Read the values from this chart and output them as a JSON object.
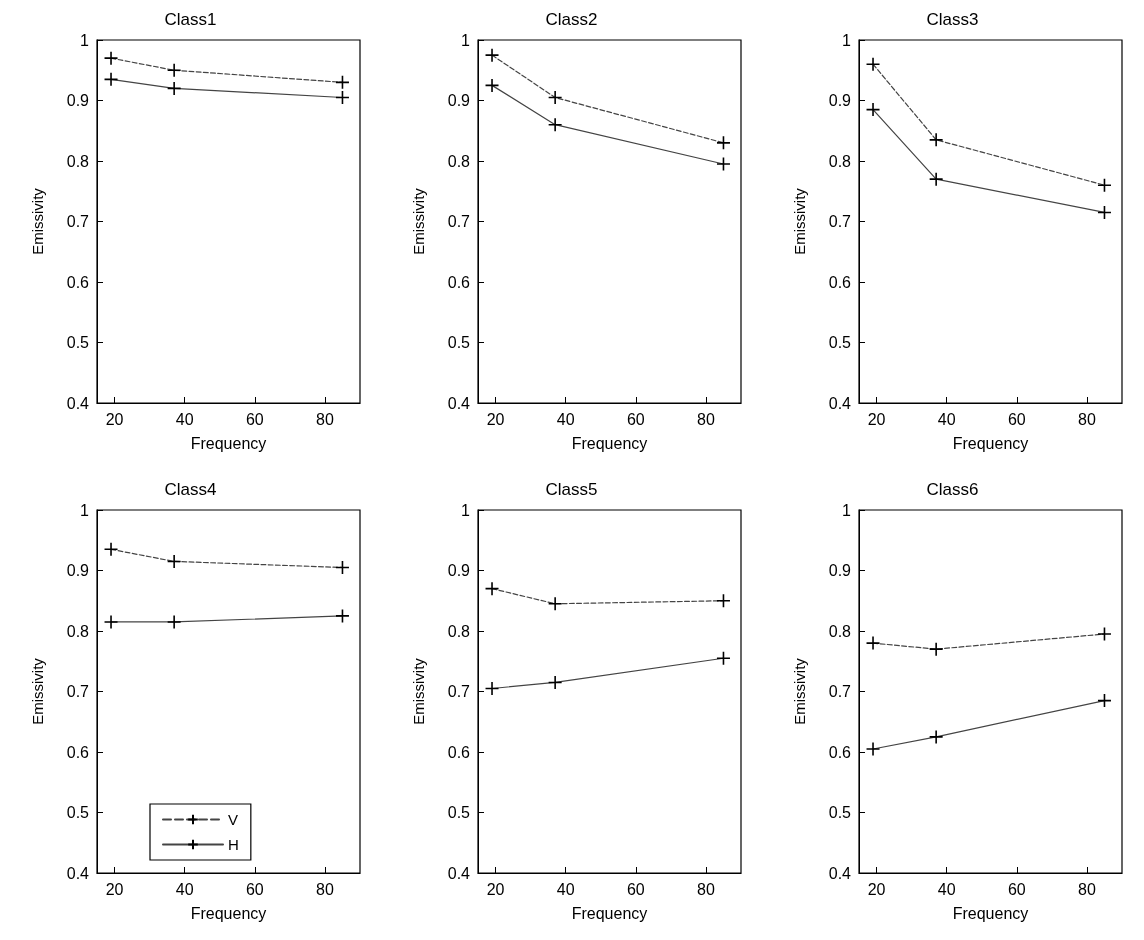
{
  "chart_data": [
    {
      "type": "line",
      "title": "Class1",
      "xlabel": "Frequency",
      "ylabel": "Emissivity",
      "x": [
        19,
        37,
        85
      ],
      "xlim": [
        15,
        90
      ],
      "xticks": [
        20,
        40,
        60,
        80
      ],
      "ylim": [
        0.4,
        1
      ],
      "yticks": [
        0.4,
        0.5,
        0.6,
        0.7,
        0.8,
        0.9,
        1
      ],
      "marker": "cross",
      "legend": false,
      "series": [
        {
          "color": "#444444",
          "line_style": "dashed",
          "values": [
            0.97,
            0.95,
            0.93
          ]
        },
        {
          "color": "#444444",
          "line_style": "solid",
          "values": [
            0.935,
            0.92,
            0.905
          ]
        }
      ]
    },
    {
      "type": "line",
      "title": "Class2",
      "xlabel": "Frequency",
      "ylabel": "Emissivity",
      "x": [
        19,
        37,
        85
      ],
      "xlim": [
        15,
        90
      ],
      "xticks": [
        20,
        40,
        60,
        80
      ],
      "ylim": [
        0.4,
        1
      ],
      "yticks": [
        0.4,
        0.5,
        0.6,
        0.7,
        0.8,
        0.9,
        1
      ],
      "marker": "cross",
      "legend": false,
      "series": [
        {
          "color": "#444444",
          "line_style": "dashed",
          "values": [
            0.975,
            0.905,
            0.83
          ]
        },
        {
          "color": "#444444",
          "line_style": "solid",
          "values": [
            0.925,
            0.86,
            0.795
          ]
        }
      ]
    },
    {
      "type": "line",
      "title": "Class3",
      "xlabel": "Frequency",
      "ylabel": "Emissivity",
      "x": [
        19,
        37,
        85
      ],
      "xlim": [
        15,
        90
      ],
      "xticks": [
        20,
        40,
        60,
        80
      ],
      "ylim": [
        0.4,
        1
      ],
      "yticks": [
        0.4,
        0.5,
        0.6,
        0.7,
        0.8,
        0.9,
        1
      ],
      "marker": "cross",
      "legend": false,
      "series": [
        {
          "color": "#444444",
          "line_style": "dashed",
          "values": [
            0.96,
            0.835,
            0.76
          ]
        },
        {
          "color": "#444444",
          "line_style": "solid",
          "values": [
            0.885,
            0.77,
            0.715
          ]
        }
      ]
    },
    {
      "type": "line",
      "title": "Class4",
      "xlabel": "Frequency",
      "ylabel": "Emissivity",
      "x": [
        19,
        37,
        85
      ],
      "xlim": [
        15,
        90
      ],
      "xticks": [
        20,
        40,
        60,
        80
      ],
      "ylim": [
        0.4,
        1
      ],
      "yticks": [
        0.4,
        0.5,
        0.6,
        0.7,
        0.8,
        0.9,
        1
      ],
      "marker": "cross",
      "legend": "bottom left",
      "series": [
        {
          "name": "V",
          "color": "#444444",
          "line_style": "dashed",
          "values": [
            0.935,
            0.915,
            0.905
          ]
        },
        {
          "name": "H",
          "color": "#444444",
          "line_style": "solid",
          "values": [
            0.815,
            0.815,
            0.825
          ]
        }
      ]
    },
    {
      "type": "line",
      "title": "Class5",
      "xlabel": "Frequency",
      "ylabel": "Emissivity",
      "x": [
        19,
        37,
        85
      ],
      "xlim": [
        15,
        90
      ],
      "xticks": [
        20,
        40,
        60,
        80
      ],
      "ylim": [
        0.4,
        1
      ],
      "yticks": [
        0.4,
        0.5,
        0.6,
        0.7,
        0.8,
        0.9,
        1
      ],
      "marker": "cross",
      "legend": false,
      "series": [
        {
          "color": "#444444",
          "line_style": "dashed",
          "values": [
            0.87,
            0.845,
            0.85
          ]
        },
        {
          "color": "#444444",
          "line_style": "solid",
          "values": [
            0.705,
            0.715,
            0.755
          ]
        }
      ]
    },
    {
      "type": "line",
      "title": "Class6",
      "xlabel": "Frequency",
      "ylabel": "Emissivity",
      "x": [
        19,
        37,
        85
      ],
      "xlim": [
        15,
        90
      ],
      "xticks": [
        20,
        40,
        60,
        80
      ],
      "ylim": [
        0.4,
        1
      ],
      "yticks": [
        0.4,
        0.5,
        0.6,
        0.7,
        0.8,
        0.9,
        1
      ],
      "marker": "cross",
      "legend": false,
      "series": [
        {
          "color": "#444444",
          "line_style": "dashed",
          "values": [
            0.78,
            0.77,
            0.795
          ]
        },
        {
          "color": "#444444",
          "line_style": "solid",
          "values": [
            0.605,
            0.625,
            0.685
          ]
        }
      ]
    }
  ]
}
